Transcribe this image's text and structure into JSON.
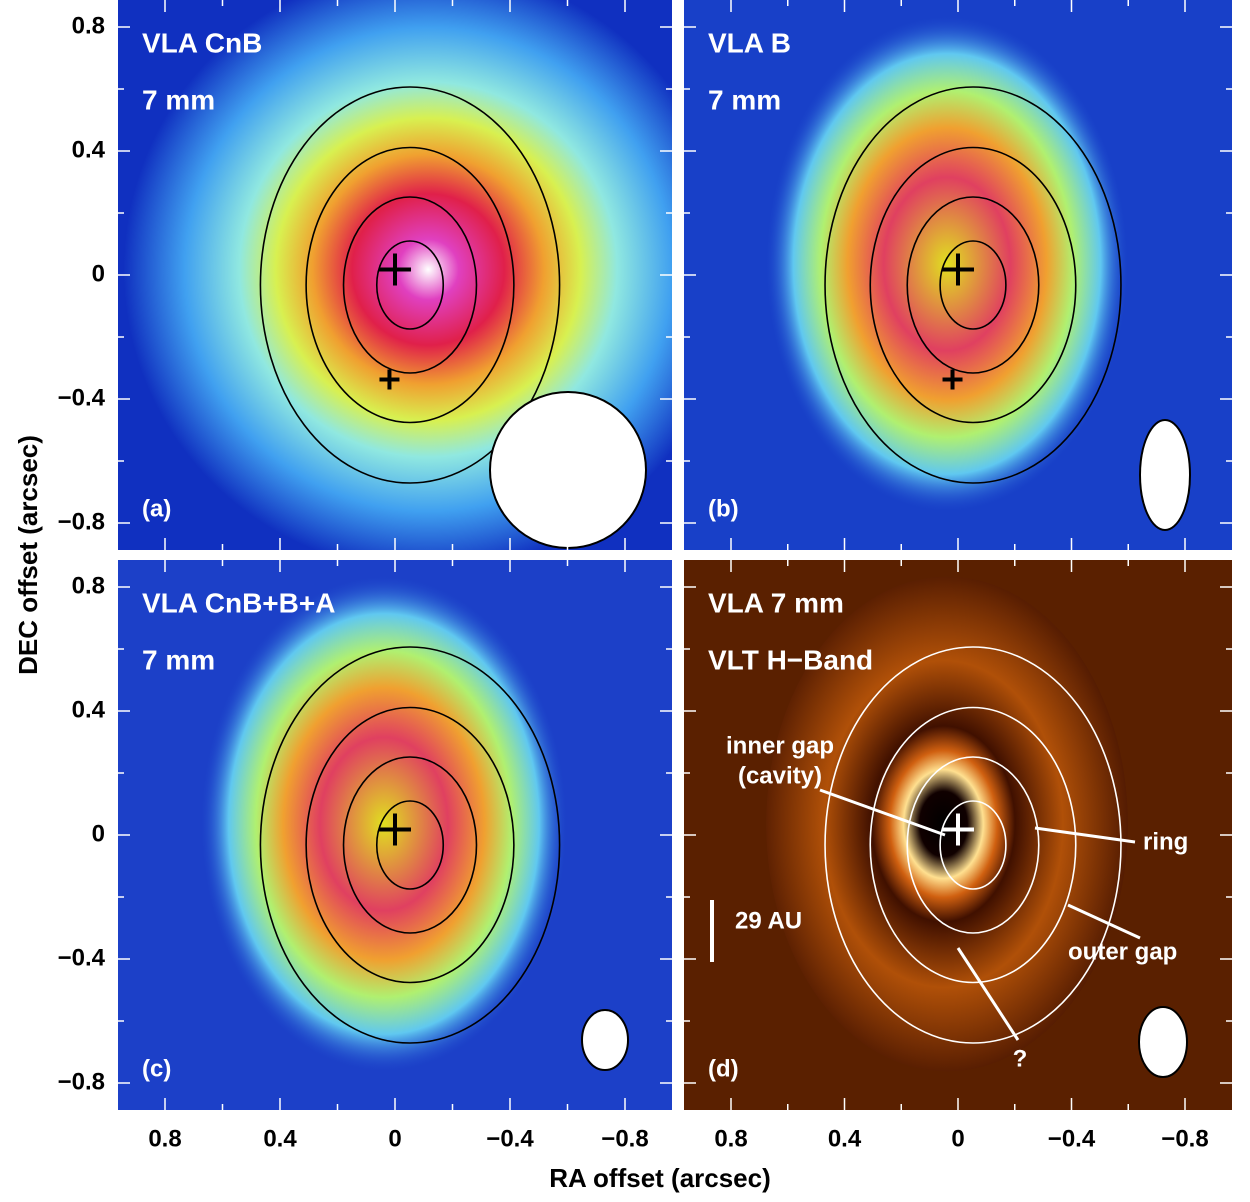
{
  "figure": {
    "xlabel": "RA offset (arcsec)",
    "ylabel": "DEC offset (arcsec)",
    "yticks": [
      "0.8",
      "0.4",
      "0",
      "−0.4",
      "−0.8"
    ],
    "xticks": [
      "0.8",
      "0.4",
      "0",
      "−0.4",
      "−0.8"
    ],
    "panels": [
      {
        "title": [
          "VLA CnB",
          "7 mm"
        ],
        "label": "(a)"
      },
      {
        "title": [
          "VLA B",
          "7 mm"
        ],
        "label": "(b)"
      },
      {
        "title": [
          "VLA CnB+B+A",
          "7 mm"
        ],
        "label": "(c)"
      },
      {
        "title": [
          "VLA 7 mm",
          "VLT H−Band"
        ],
        "label": "(d)",
        "annotations": [
          "inner gap",
          "(cavity)",
          "ring",
          "outer gap",
          "?",
          "29 AU"
        ]
      }
    ]
  }
}
